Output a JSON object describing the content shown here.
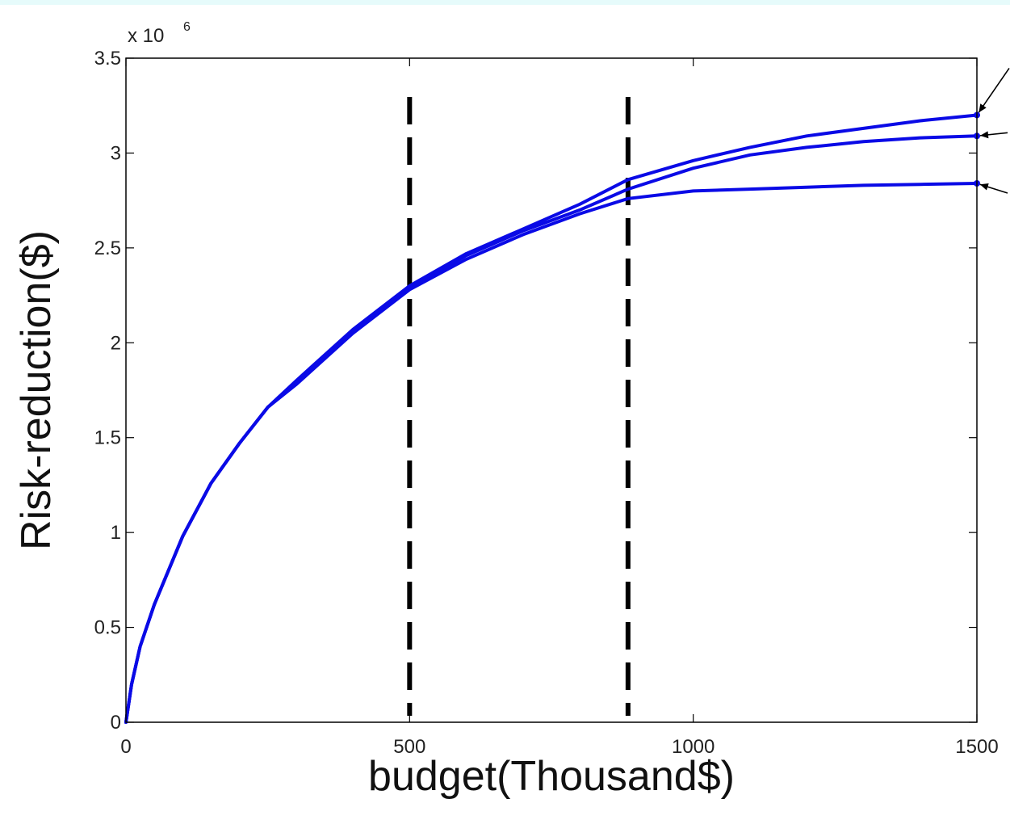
{
  "chart_data": {
    "type": "line",
    "title": "",
    "xlabel": "budget(Thousand$)",
    "ylabel": "Risk-reduction($)",
    "y_multiplier_label": "x 10",
    "y_multiplier_exponent": "6",
    "xlim": [
      0,
      1500
    ],
    "ylim": [
      0,
      3.5
    ],
    "x_ticks": [
      "0",
      "500",
      "1000",
      "1500"
    ],
    "y_ticks": [
      "0",
      "0.5",
      "1",
      "1.5",
      "2",
      "2.5",
      "3",
      "3.5"
    ],
    "grid": false,
    "legend": "none",
    "colors": {
      "series": "#0a0ae6",
      "dashed": "#000000",
      "axes": "#000000",
      "top_band": "#e6fbfb"
    },
    "vertical_markers": [
      500,
      885
    ],
    "series": [
      {
        "x": [
          0,
          10,
          25,
          50,
          100,
          150,
          200,
          250,
          300,
          400,
          500,
          600,
          700,
          800,
          885,
          1000,
          1100,
          1200,
          1300,
          1400,
          1500
        ],
        "values": [
          0,
          0.2,
          0.4,
          0.62,
          0.98,
          1.26,
          1.47,
          1.66,
          1.8,
          2.07,
          2.3,
          2.47,
          2.6,
          2.73,
          2.86,
          2.96,
          3.03,
          3.09,
          3.13,
          3.17,
          3.2
        ]
      },
      {
        "x": [
          0,
          10,
          25,
          50,
          100,
          150,
          200,
          250,
          300,
          400,
          500,
          600,
          700,
          800,
          885,
          1000,
          1100,
          1200,
          1300,
          1400,
          1500
        ],
        "values": [
          0,
          0.2,
          0.4,
          0.62,
          0.98,
          1.26,
          1.47,
          1.66,
          1.79,
          2.06,
          2.29,
          2.46,
          2.59,
          2.7,
          2.81,
          2.92,
          2.99,
          3.03,
          3.06,
          3.08,
          3.09
        ]
      },
      {
        "x": [
          0,
          10,
          25,
          50,
          100,
          150,
          200,
          250,
          300,
          400,
          500,
          600,
          700,
          800,
          885,
          1000,
          1100,
          1200,
          1300,
          1400,
          1500
        ],
        "values": [
          0,
          0.2,
          0.4,
          0.62,
          0.98,
          1.26,
          1.47,
          1.66,
          1.78,
          2.05,
          2.28,
          2.44,
          2.57,
          2.68,
          2.76,
          2.8,
          2.81,
          2.82,
          2.83,
          2.835,
          2.84
        ]
      }
    ]
  }
}
